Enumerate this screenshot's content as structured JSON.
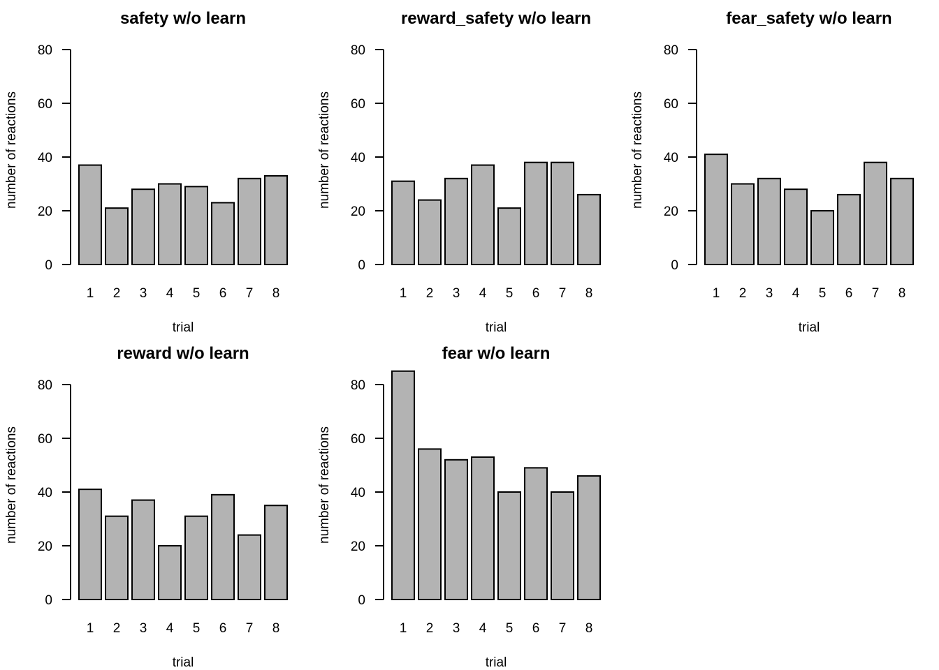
{
  "chart_data": [
    {
      "type": "bar",
      "title": "safety w/o learn",
      "xlabel": "trial",
      "ylabel": "number of reactions",
      "categories": [
        "1",
        "2",
        "3",
        "4",
        "5",
        "6",
        "7",
        "8"
      ],
      "values": [
        37,
        21,
        28,
        30,
        29,
        23,
        32,
        33
      ],
      "ylim": [
        0,
        80
      ],
      "yticks": [
        0,
        20,
        40,
        60,
        80
      ],
      "bar_color": "#b3b3b3",
      "grid": false
    },
    {
      "type": "bar",
      "title": "reward_safety w/o learn",
      "xlabel": "trial",
      "ylabel": "number of reactions",
      "categories": [
        "1",
        "2",
        "3",
        "4",
        "5",
        "6",
        "7",
        "8"
      ],
      "values": [
        31,
        24,
        32,
        37,
        21,
        38,
        38,
        26
      ],
      "ylim": [
        0,
        80
      ],
      "yticks": [
        0,
        20,
        40,
        60,
        80
      ],
      "bar_color": "#b3b3b3",
      "grid": false
    },
    {
      "type": "bar",
      "title": "fear_safety w/o learn",
      "xlabel": "trial",
      "ylabel": "number of reactions",
      "categories": [
        "1",
        "2",
        "3",
        "4",
        "5",
        "6",
        "7",
        "8"
      ],
      "values": [
        41,
        30,
        32,
        28,
        20,
        26,
        38,
        32
      ],
      "ylim": [
        0,
        80
      ],
      "yticks": [
        0,
        20,
        40,
        60,
        80
      ],
      "bar_color": "#b3b3b3",
      "grid": false
    },
    {
      "type": "bar",
      "title": "reward w/o learn",
      "xlabel": "trial",
      "ylabel": "number of reactions",
      "categories": [
        "1",
        "2",
        "3",
        "4",
        "5",
        "6",
        "7",
        "8"
      ],
      "values": [
        41,
        31,
        37,
        20,
        31,
        39,
        24,
        35
      ],
      "ylim": [
        0,
        80
      ],
      "yticks": [
        0,
        20,
        40,
        60,
        80
      ],
      "bar_color": "#b3b3b3",
      "grid": false
    },
    {
      "type": "bar",
      "title": "fear w/o learn",
      "xlabel": "trial",
      "ylabel": "number of reactions",
      "categories": [
        "1",
        "2",
        "3",
        "4",
        "5",
        "6",
        "7",
        "8"
      ],
      "values": [
        85,
        56,
        52,
        53,
        40,
        49,
        40,
        46
      ],
      "ylim": [
        0,
        80
      ],
      "yticks": [
        0,
        20,
        40,
        60,
        80
      ],
      "bar_color": "#b3b3b3",
      "grid": false
    }
  ]
}
